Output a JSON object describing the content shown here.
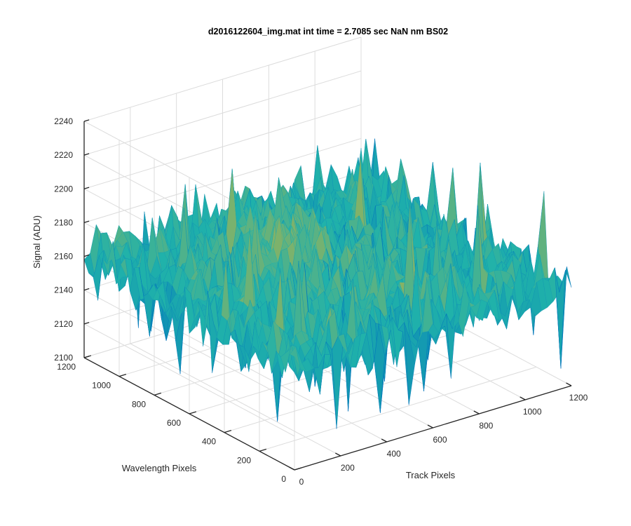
{
  "chart_data": {
    "type": "surface",
    "title": "d2016122604_img.mat int time = 2.7085 sec  NaN nm BS02",
    "xlabel": "Track Pixels",
    "ylabel": "Wavelength Pixels",
    "zlabel": "Signal (ADU)",
    "xlim": [
      0,
      1200
    ],
    "ylim": [
      0,
      1200
    ],
    "zlim": [
      2100,
      2240
    ],
    "x_ticks": [
      "0",
      "200",
      "400",
      "600",
      "800",
      "1000",
      "1200"
    ],
    "y_ticks": [
      "0",
      "200",
      "400",
      "600",
      "800",
      "1000",
      "1200"
    ],
    "z_ticks": [
      "2100",
      "2120",
      "2140",
      "2160",
      "2180",
      "2200",
      "2220",
      "2240"
    ],
    "grid": true,
    "colormap": "parula",
    "colors": {
      "low": "#0072bd",
      "mid": "#20b2aa",
      "high": "#edb120"
    },
    "signal_summary": {
      "mean": 2158,
      "noise_peak_to_peak": 70,
      "max_approx": 2235,
      "min_approx": 2105
    }
  }
}
